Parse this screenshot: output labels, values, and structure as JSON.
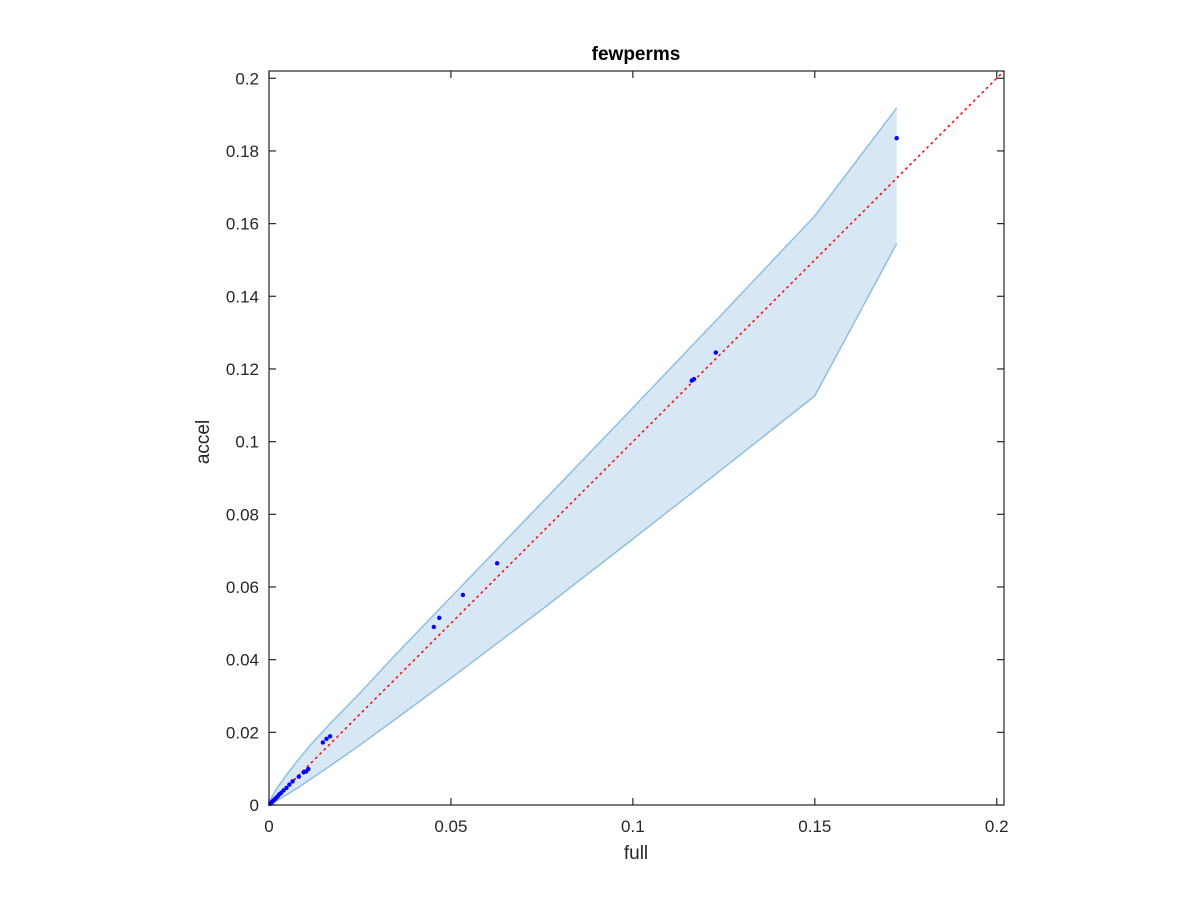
{
  "chart_data": {
    "type": "scatter",
    "title": "fewperms",
    "xlabel": "full",
    "ylabel": "accel",
    "xlim": [
      0,
      0.202
    ],
    "ylim": [
      0,
      0.202
    ],
    "xticks": [
      0,
      0.05,
      0.1,
      0.15,
      0.2
    ],
    "xtick_labels": [
      "0",
      "0.05",
      "0.1",
      "0.15",
      "0.2"
    ],
    "yticks": [
      0,
      0.02,
      0.04,
      0.06,
      0.08,
      0.1,
      0.12,
      0.14,
      0.16,
      0.18,
      0.2
    ],
    "ytick_labels": [
      "0",
      "0.02",
      "0.04",
      "0.06",
      "0.08",
      "0.1",
      "0.12",
      "0.14",
      "0.16",
      "0.18",
      "0.2"
    ],
    "grid": false,
    "box": true,
    "colors": {
      "points": "#0000ff",
      "reference_line": "#ff0000",
      "band_fill": "#d7e8f4",
      "band_edge": "#8ebfe0",
      "axes": "#262626"
    },
    "series": [
      {
        "type": "scatter",
        "x": [
          0.0003,
          0.0005,
          0.0008,
          0.001,
          0.0013,
          0.0016,
          0.002,
          0.0024,
          0.0028,
          0.0033,
          0.004,
          0.0048,
          0.0056,
          0.0065,
          0.0082,
          0.0095,
          0.0102,
          0.0108,
          0.0148,
          0.0158,
          0.0168,
          0.0453,
          0.0468,
          0.0533,
          0.0627,
          0.1162,
          0.1168,
          0.1228,
          0.1725
        ],
        "y": [
          0.0003,
          0.0005,
          0.0008,
          0.001,
          0.0013,
          0.0016,
          0.002,
          0.0024,
          0.0029,
          0.0033,
          0.004,
          0.0047,
          0.0056,
          0.0065,
          0.0078,
          0.009,
          0.0092,
          0.0099,
          0.0172,
          0.0182,
          0.0189,
          0.049,
          0.0515,
          0.0578,
          0.0665,
          0.1168,
          0.1172,
          0.1245,
          0.1835
        ]
      },
      {
        "type": "line",
        "style": "dotted",
        "x": [
          0,
          0.202
        ],
        "y": [
          0,
          0.202
        ]
      },
      {
        "type": "area",
        "x": [
          0,
          0.0005,
          0.001,
          0.002,
          0.003,
          0.005,
          0.008,
          0.012,
          0.017,
          0.025,
          0.035,
          0.05,
          0.075,
          0.1,
          0.125,
          0.15,
          0.1725
        ],
        "upper": [
          0,
          0.0016,
          0.0026,
          0.0043,
          0.0058,
          0.0085,
          0.0124,
          0.0172,
          0.0226,
          0.0308,
          0.0416,
          0.0572,
          0.0832,
          0.1093,
          0.1356,
          0.1621,
          0.1918
        ],
        "lower": [
          0,
          0.0002,
          0.0005,
          0.0011,
          0.0017,
          0.0029,
          0.0048,
          0.0075,
          0.0109,
          0.0165,
          0.0238,
          0.0349,
          0.0538,
          0.0732,
          0.0928,
          0.1126,
          0.1545
        ]
      }
    ]
  }
}
